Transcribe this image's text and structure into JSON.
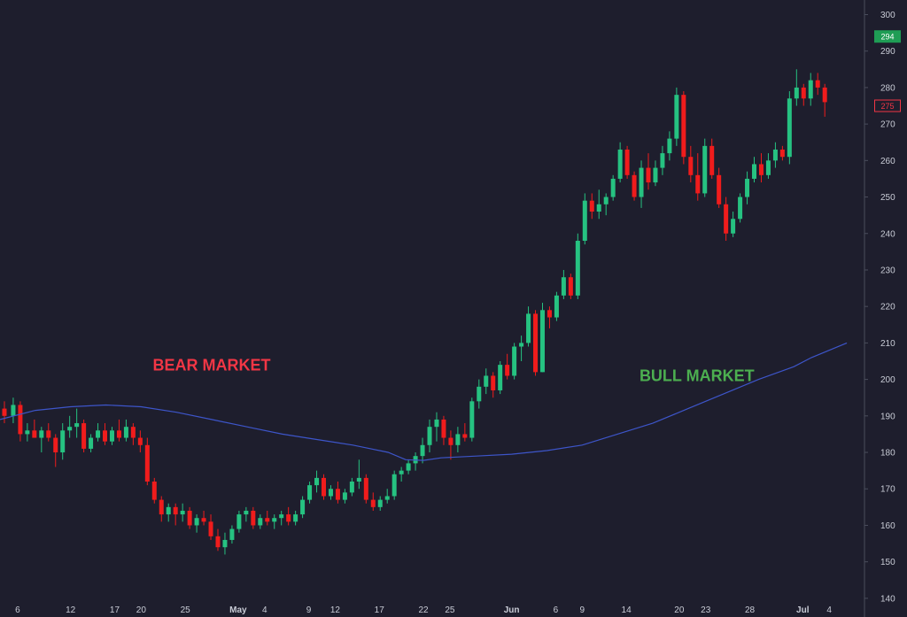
{
  "colors": {
    "background": "#1e1e2d",
    "up": "#26c281",
    "down": "#f01c1c",
    "moving_average": "#3d55c9",
    "axis_text": "#c9ccd6",
    "bear_label": "#f23645",
    "bull_label": "#4caf50",
    "last_price_up_bg": "#1f9d55",
    "last_price_down_border": "#f23645"
  },
  "chart_data": {
    "type": "candlestick",
    "title": "",
    "y_axis": {
      "ticks": [
        140,
        150,
        160,
        170,
        180,
        190,
        200,
        210,
        220,
        230,
        240,
        250,
        260,
        270,
        280,
        290,
        300
      ],
      "ylim": [
        139,
        304
      ],
      "side": "right"
    },
    "x_axis": {
      "ticks": [
        {
          "label": "6",
          "day": 0
        },
        {
          "label": "12",
          "day": 6
        },
        {
          "label": "17",
          "day": 11
        },
        {
          "label": "20",
          "day": 14
        },
        {
          "label": "25",
          "day": 19
        },
        {
          "label": "May",
          "day": 25,
          "bold": true
        },
        {
          "label": "4",
          "day": 28
        },
        {
          "label": "9",
          "day": 33
        },
        {
          "label": "12",
          "day": 36
        },
        {
          "label": "17",
          "day": 41
        },
        {
          "label": "22",
          "day": 46
        },
        {
          "label": "25",
          "day": 49
        },
        {
          "label": "Jun",
          "day": 56,
          "bold": true
        },
        {
          "label": "6",
          "day": 61
        },
        {
          "label": "9",
          "day": 64
        },
        {
          "label": "14",
          "day": 69
        },
        {
          "label": "20",
          "day": 75
        },
        {
          "label": "23",
          "day": 78
        },
        {
          "label": "28",
          "day": 83
        },
        {
          "label": "Jul",
          "day": 89,
          "bold": true
        },
        {
          "label": "4",
          "day": 92
        }
      ],
      "xlim": [
        -2,
        96
      ]
    },
    "candles": [
      [
        -1.5,
        192,
        194,
        188,
        190
      ],
      [
        -0.5,
        190,
        195,
        188,
        193
      ],
      [
        0.3,
        193,
        194,
        183,
        185
      ],
      [
        1.1,
        185,
        188,
        183,
        186
      ],
      [
        1.9,
        186,
        189,
        184,
        184
      ],
      [
        2.7,
        184,
        187,
        180,
        186
      ],
      [
        3.5,
        186,
        188,
        183,
        184
      ],
      [
        4.3,
        184,
        185,
        176,
        180
      ],
      [
        5.1,
        180,
        188,
        178,
        186
      ],
      [
        5.9,
        186,
        190,
        184,
        187
      ],
      [
        6.7,
        187,
        192,
        184,
        188
      ],
      [
        7.5,
        188,
        189,
        180,
        181
      ],
      [
        8.3,
        181,
        185,
        180,
        184
      ],
      [
        9.1,
        184,
        188,
        183,
        186
      ],
      [
        9.9,
        186,
        188,
        182,
        183
      ],
      [
        10.7,
        183,
        187,
        182,
        186
      ],
      [
        11.5,
        186,
        189,
        183,
        184
      ],
      [
        12.3,
        184,
        189,
        183,
        187
      ],
      [
        13.1,
        187,
        188,
        182,
        184
      ],
      [
        13.9,
        184,
        186,
        180,
        182
      ],
      [
        14.7,
        182,
        184,
        171,
        172
      ],
      [
        15.5,
        172,
        173,
        166,
        167
      ],
      [
        16.3,
        167,
        168,
        161,
        163
      ],
      [
        17.1,
        163,
        166,
        161,
        165
      ],
      [
        17.9,
        165,
        166,
        160,
        163
      ],
      [
        18.7,
        163,
        166,
        161,
        164
      ],
      [
        19.5,
        164,
        165,
        159,
        160
      ],
      [
        20.3,
        160,
        163,
        158,
        162
      ],
      [
        21.1,
        162,
        164,
        160,
        161
      ],
      [
        21.9,
        161,
        163,
        156,
        157
      ],
      [
        22.7,
        157,
        159,
        153,
        154
      ],
      [
        23.5,
        154,
        158,
        152,
        156
      ],
      [
        24.3,
        156,
        160,
        155,
        159
      ],
      [
        25.1,
        159,
        164,
        158,
        163
      ],
      [
        25.9,
        163,
        165,
        161,
        164
      ],
      [
        26.7,
        164,
        165,
        159,
        160
      ],
      [
        27.5,
        160,
        163,
        159,
        162
      ],
      [
        28.3,
        162,
        164,
        160,
        161
      ],
      [
        29.1,
        161,
        163,
        159,
        162
      ],
      [
        29.9,
        162,
        164,
        160,
        163
      ],
      [
        30.7,
        163,
        165,
        160,
        161
      ],
      [
        31.5,
        161,
        164,
        160,
        163
      ],
      [
        32.3,
        163,
        168,
        162,
        167
      ],
      [
        33.1,
        167,
        172,
        166,
        171
      ],
      [
        33.9,
        171,
        175,
        169,
        173
      ],
      [
        34.7,
        173,
        174,
        167,
        168
      ],
      [
        35.5,
        168,
        171,
        167,
        170
      ],
      [
        36.3,
        170,
        172,
        166,
        167
      ],
      [
        37.1,
        167,
        170,
        166,
        169
      ],
      [
        37.9,
        169,
        173,
        168,
        172
      ],
      [
        38.7,
        172,
        178,
        170,
        173
      ],
      [
        39.5,
        173,
        174,
        166,
        167
      ],
      [
        40.3,
        167,
        169,
        164,
        165
      ],
      [
        41.1,
        165,
        168,
        164,
        167
      ],
      [
        41.9,
        167,
        170,
        166,
        168
      ],
      [
        42.7,
        168,
        175,
        167,
        174
      ],
      [
        43.5,
        174,
        176,
        172,
        175
      ],
      [
        44.3,
        175,
        178,
        174,
        177
      ],
      [
        45.1,
        177,
        180,
        175,
        179
      ],
      [
        45.9,
        179,
        184,
        177,
        182
      ],
      [
        46.7,
        182,
        189,
        180,
        187
      ],
      [
        47.5,
        187,
        191,
        183,
        189
      ],
      [
        48.3,
        189,
        190,
        182,
        184
      ],
      [
        49.1,
        184,
        186,
        178,
        182
      ],
      [
        49.9,
        182,
        187,
        180,
        185
      ],
      [
        50.7,
        185,
        188,
        183,
        184
      ],
      [
        51.5,
        184,
        195,
        183,
        194
      ],
      [
        52.3,
        194,
        200,
        192,
        198
      ],
      [
        53.1,
        198,
        203,
        196,
        201
      ],
      [
        53.9,
        201,
        202,
        195,
        197
      ],
      [
        54.7,
        197,
        205,
        196,
        204
      ],
      [
        55.5,
        204,
        207,
        200,
        201
      ],
      [
        56.3,
        201,
        210,
        200,
        209
      ],
      [
        57.1,
        209,
        212,
        205,
        210
      ],
      [
        57.9,
        210,
        220,
        209,
        218
      ],
      [
        58.7,
        218,
        219,
        201,
        202
      ],
      [
        59.5,
        202,
        221,
        202,
        219
      ],
      [
        60.3,
        219,
        220,
        214,
        217
      ],
      [
        61.1,
        217,
        224,
        216,
        223
      ],
      [
        61.9,
        223,
        230,
        222,
        228
      ],
      [
        62.7,
        228,
        229,
        222,
        223
      ],
      [
        63.5,
        223,
        240,
        222,
        238
      ],
      [
        64.3,
        238,
        251,
        237,
        249
      ],
      [
        65.1,
        249,
        251,
        244,
        246
      ],
      [
        65.9,
        246,
        252,
        244,
        248
      ],
      [
        66.7,
        248,
        251,
        245,
        250
      ],
      [
        67.5,
        250,
        256,
        249,
        255
      ],
      [
        68.3,
        255,
        265,
        254,
        263
      ],
      [
        69.1,
        263,
        264,
        255,
        256
      ],
      [
        69.9,
        256,
        257,
        249,
        250
      ],
      [
        70.7,
        250,
        260,
        247,
        258
      ],
      [
        71.5,
        258,
        262,
        252,
        254
      ],
      [
        72.3,
        254,
        260,
        253,
        258
      ],
      [
        73.1,
        258,
        264,
        256,
        262
      ],
      [
        73.9,
        262,
        268,
        260,
        266
      ],
      [
        74.7,
        266,
        280,
        264,
        278
      ],
      [
        75.5,
        278,
        279,
        259,
        261
      ],
      [
        76.3,
        261,
        264,
        254,
        256
      ],
      [
        77.1,
        256,
        262,
        249,
        251
      ],
      [
        77.9,
        251,
        266,
        250,
        264
      ],
      [
        78.7,
        264,
        266,
        255,
        256
      ],
      [
        79.5,
        256,
        258,
        247,
        248
      ],
      [
        80.3,
        248,
        250,
        238,
        240
      ],
      [
        81.1,
        240,
        246,
        239,
        244
      ],
      [
        81.9,
        244,
        251,
        243,
        250
      ],
      [
        82.7,
        250,
        257,
        248,
        255
      ],
      [
        83.5,
        255,
        261,
        254,
        259
      ],
      [
        84.3,
        259,
        262,
        254,
        256
      ],
      [
        85.1,
        256,
        262,
        255,
        260
      ],
      [
        85.9,
        260,
        265,
        258,
        263
      ],
      [
        86.7,
        263,
        264,
        260,
        261
      ],
      [
        87.5,
        261,
        279,
        259,
        277
      ],
      [
        88.3,
        277,
        285,
        275,
        280
      ],
      [
        89.1,
        280,
        281,
        275,
        277
      ],
      [
        89.9,
        277,
        284,
        275,
        282
      ],
      [
        90.7,
        282,
        284,
        278,
        280
      ],
      [
        91.5,
        280,
        281,
        272,
        276
      ]
    ],
    "moving_average": [
      [
        -2,
        189
      ],
      [
        2,
        191.5
      ],
      [
        6,
        192.5
      ],
      [
        10,
        193
      ],
      [
        14,
        192.5
      ],
      [
        18,
        191
      ],
      [
        22,
        189
      ],
      [
        26,
        187
      ],
      [
        30,
        185
      ],
      [
        34,
        183.5
      ],
      [
        38,
        182
      ],
      [
        42,
        180
      ],
      [
        44,
        178
      ],
      [
        46,
        177.8
      ],
      [
        48,
        178.5
      ],
      [
        52,
        179
      ],
      [
        56,
        179.5
      ],
      [
        60,
        180.5
      ],
      [
        64,
        182
      ],
      [
        68,
        185
      ],
      [
        72,
        188
      ],
      [
        76,
        192
      ],
      [
        80,
        196
      ],
      [
        84,
        200
      ],
      [
        88,
        203.5
      ],
      [
        90,
        206
      ],
      [
        94,
        210
      ]
    ],
    "annotations": [
      {
        "text": "BEAR MARKET",
        "day": 22,
        "y": 202.5,
        "sentiment": "bear"
      },
      {
        "text": "BULL MARKET",
        "day": 77,
        "y": 199.5,
        "sentiment": "bull"
      }
    ],
    "price_badges": [
      {
        "label": "294",
        "value": 294,
        "style": "up"
      },
      {
        "label": "275",
        "value": 275,
        "style": "down"
      }
    ]
  }
}
